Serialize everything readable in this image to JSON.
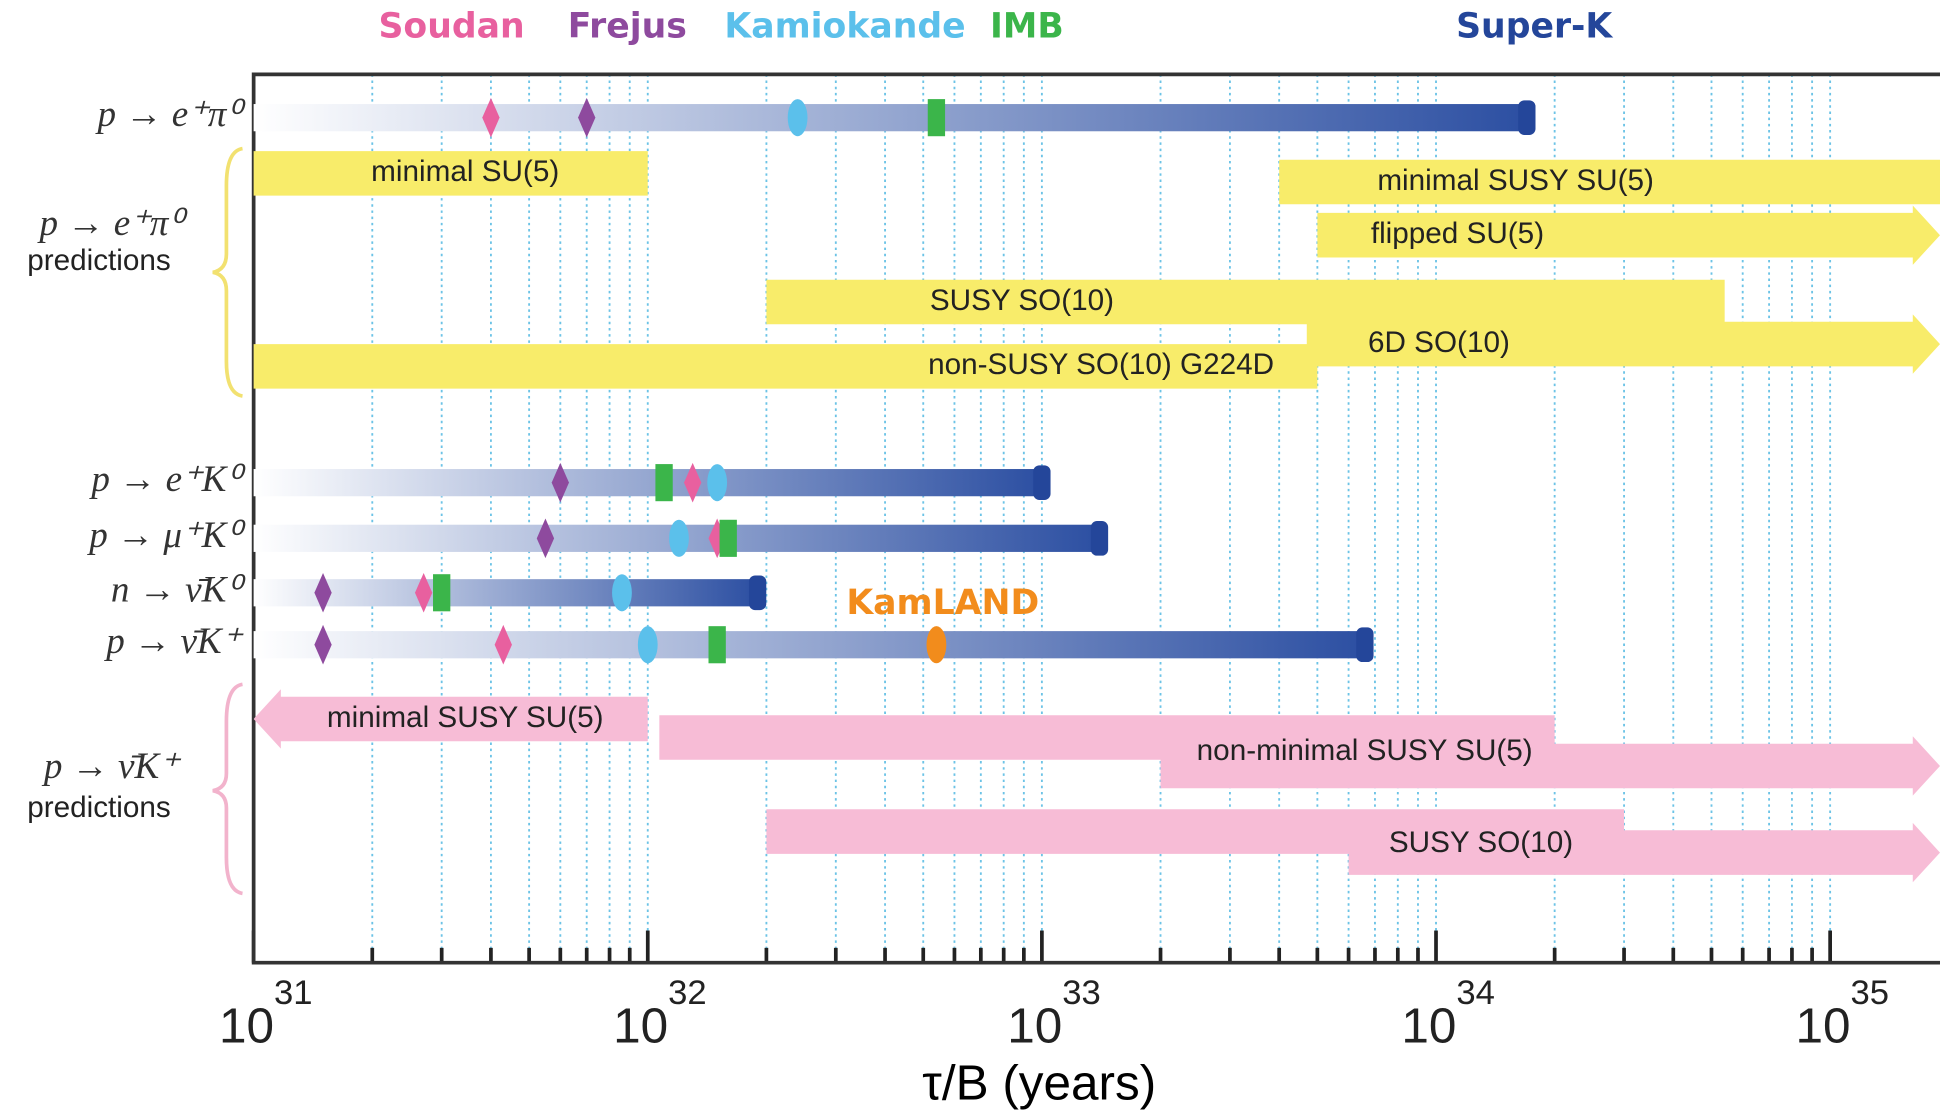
{
  "chart_data": {
    "type": "range",
    "xlabel": "τ/B (years)",
    "log_x": true,
    "xlim": [
      1e+31,
      1.9e+35
    ],
    "xticks": [
      {
        "value": 1e+31,
        "label": "10",
        "exponent": "31"
      },
      {
        "value": 1e+32,
        "label": "10",
        "exponent": "32"
      },
      {
        "value": 1e+33,
        "label": "10",
        "exponent": "33"
      },
      {
        "value": 1e+34,
        "label": "10",
        "exponent": "34"
      },
      {
        "value": 1e+35,
        "label": "10",
        "exponent": "35"
      }
    ],
    "minor_xticks": [
      2e+31,
      3e+31,
      4e+31,
      5e+31,
      6e+31,
      7e+31,
      8e+31,
      9e+31,
      2e+32,
      3e+32,
      4e+32,
      5e+32,
      6e+32,
      7e+32,
      8e+32,
      9e+32,
      2e+33,
      3e+33,
      4e+33,
      5e+33,
      6e+33,
      7e+33,
      8e+33,
      9e+33,
      2e+34,
      3e+34,
      4e+34,
      5e+34,
      6e+34,
      7e+34,
      8e+34,
      9e+34
    ],
    "grid": true,
    "grid_color": "#6cc3e6",
    "categories": [
      "p → e⁺π⁰",
      "p → e⁺K⁰",
      "p → μ⁺K⁰",
      "n → ν̄K⁰",
      "p → ν̄K⁺"
    ],
    "series": [
      {
        "name": "Soudan",
        "color": "#e8609f",
        "marker": "diamond",
        "values": [
          4e+31,
          1.3e+32,
          1.5e+32,
          2.7e+31,
          4.3e+31
        ]
      },
      {
        "name": "Frejus",
        "color": "#8e4a9e",
        "marker": "diamond",
        "values": [
          7e+31,
          6e+31,
          5.5e+31,
          1.5e+31,
          1.5e+31
        ]
      },
      {
        "name": "Kamiokande",
        "color": "#5bc0eb",
        "marker": "ellipse",
        "values": [
          2.4e+32,
          1.5e+32,
          1.2e+32,
          8.6e+31,
          1e+32
        ]
      },
      {
        "name": "IMB",
        "color": "#3bb54a",
        "marker": "rect",
        "values": [
          5.4e+32,
          1.1e+32,
          1.6e+32,
          3e+31,
          1.5e+32
        ]
      },
      {
        "name": "Super-K",
        "color": "#24469a",
        "marker": "bar",
        "values": [
          1.7e+34,
          1e+33,
          1.4e+33,
          1.9e+32,
          6.6e+33
        ]
      },
      {
        "name": "KamLAND",
        "color": "#f28c1c",
        "marker": "ellipse",
        "values": [
          null,
          null,
          null,
          null,
          5.4e+32
        ]
      }
    ],
    "predictions": [
      {
        "mode": "p → e⁺π⁰",
        "label": "predictions",
        "color": "#f8ec6a",
        "items": [
          {
            "name": "minimal SU(5)",
            "segments": [
              {
                "from": null,
                "to": 1e+32
              }
            ]
          },
          {
            "name": "minimal SUSY SU(5)",
            "segments": [
              {
                "from": 4e+33,
                "to": null
              }
            ]
          },
          {
            "name": "flipped SU(5)",
            "arrow": "right",
            "segments": [
              {
                "from": 5e+33,
                "to": null
              }
            ]
          },
          {
            "name": "SUSY SO(10)",
            "segments": [
              {
                "from": 2e+32,
                "to": 5.4e+34
              }
            ]
          },
          {
            "name": "6D SO(10)",
            "arrow": "right",
            "segments": [
              {
                "from": 4.7e+33,
                "to": null
              }
            ]
          },
          {
            "name": "non-SUSY SO(10) G224D",
            "segments": [
              {
                "from": null,
                "to": 5e+33
              }
            ]
          }
        ]
      },
      {
        "mode": "p → ν̄K⁺",
        "label": "predictions",
        "color": "#f7bcd6",
        "items": [
          {
            "name": "minimal SUSY SU(5)",
            "arrow": "left",
            "segments": [
              {
                "from": null,
                "to": 1e+32
              }
            ]
          },
          {
            "name": "non-minimal SUSY SU(5)",
            "arrow": "right",
            "segments": [
              {
                "from": 1.07e+32,
                "to": 2e+34
              },
              {
                "from": 2e+33,
                "to": null
              }
            ]
          },
          {
            "name": "SUSY SO(10)",
            "arrow": "right",
            "segments": [
              {
                "from": 2e+32,
                "to": 3e+34
              },
              {
                "from": 6e+33,
                "to": null
              }
            ]
          }
        ]
      }
    ]
  }
}
